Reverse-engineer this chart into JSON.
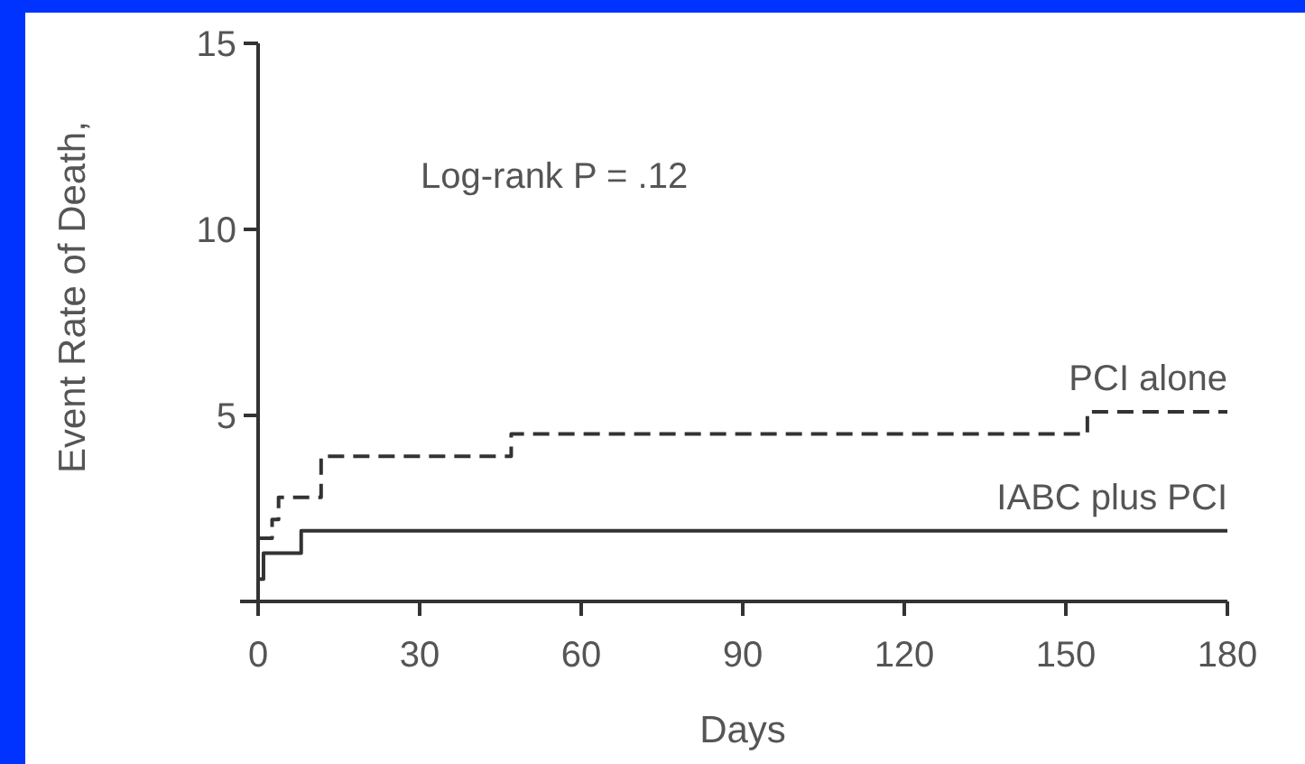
{
  "chart_data": {
    "type": "step",
    "xlabel": "Days",
    "ylabel": "Event Rate of Death,",
    "annotations": [
      "Log-rank P = .12"
    ],
    "xlim": [
      0,
      180
    ],
    "xticks": [
      0,
      30,
      60,
      90,
      120,
      150,
      180
    ],
    "ylim": [
      0,
      15
    ],
    "yticks": [
      5,
      10,
      15
    ],
    "grid": false,
    "legend": false,
    "marker": "none",
    "series": [
      {
        "name": "PCI alone",
        "color": "#333333",
        "line_style": "dashed",
        "x": [
          0,
          2.6,
          3.8,
          11.7,
          47,
          154,
          180
        ],
        "values": [
          1.7,
          2.2,
          2.8,
          3.9,
          4.5,
          5.1,
          5.1
        ]
      },
      {
        "name": "IABC plus PCI",
        "color": "#333333",
        "line_style": "solid",
        "x": [
          0,
          1,
          8,
          180
        ],
        "values": [
          0.6,
          1.3,
          1.9,
          1.9
        ]
      }
    ]
  }
}
